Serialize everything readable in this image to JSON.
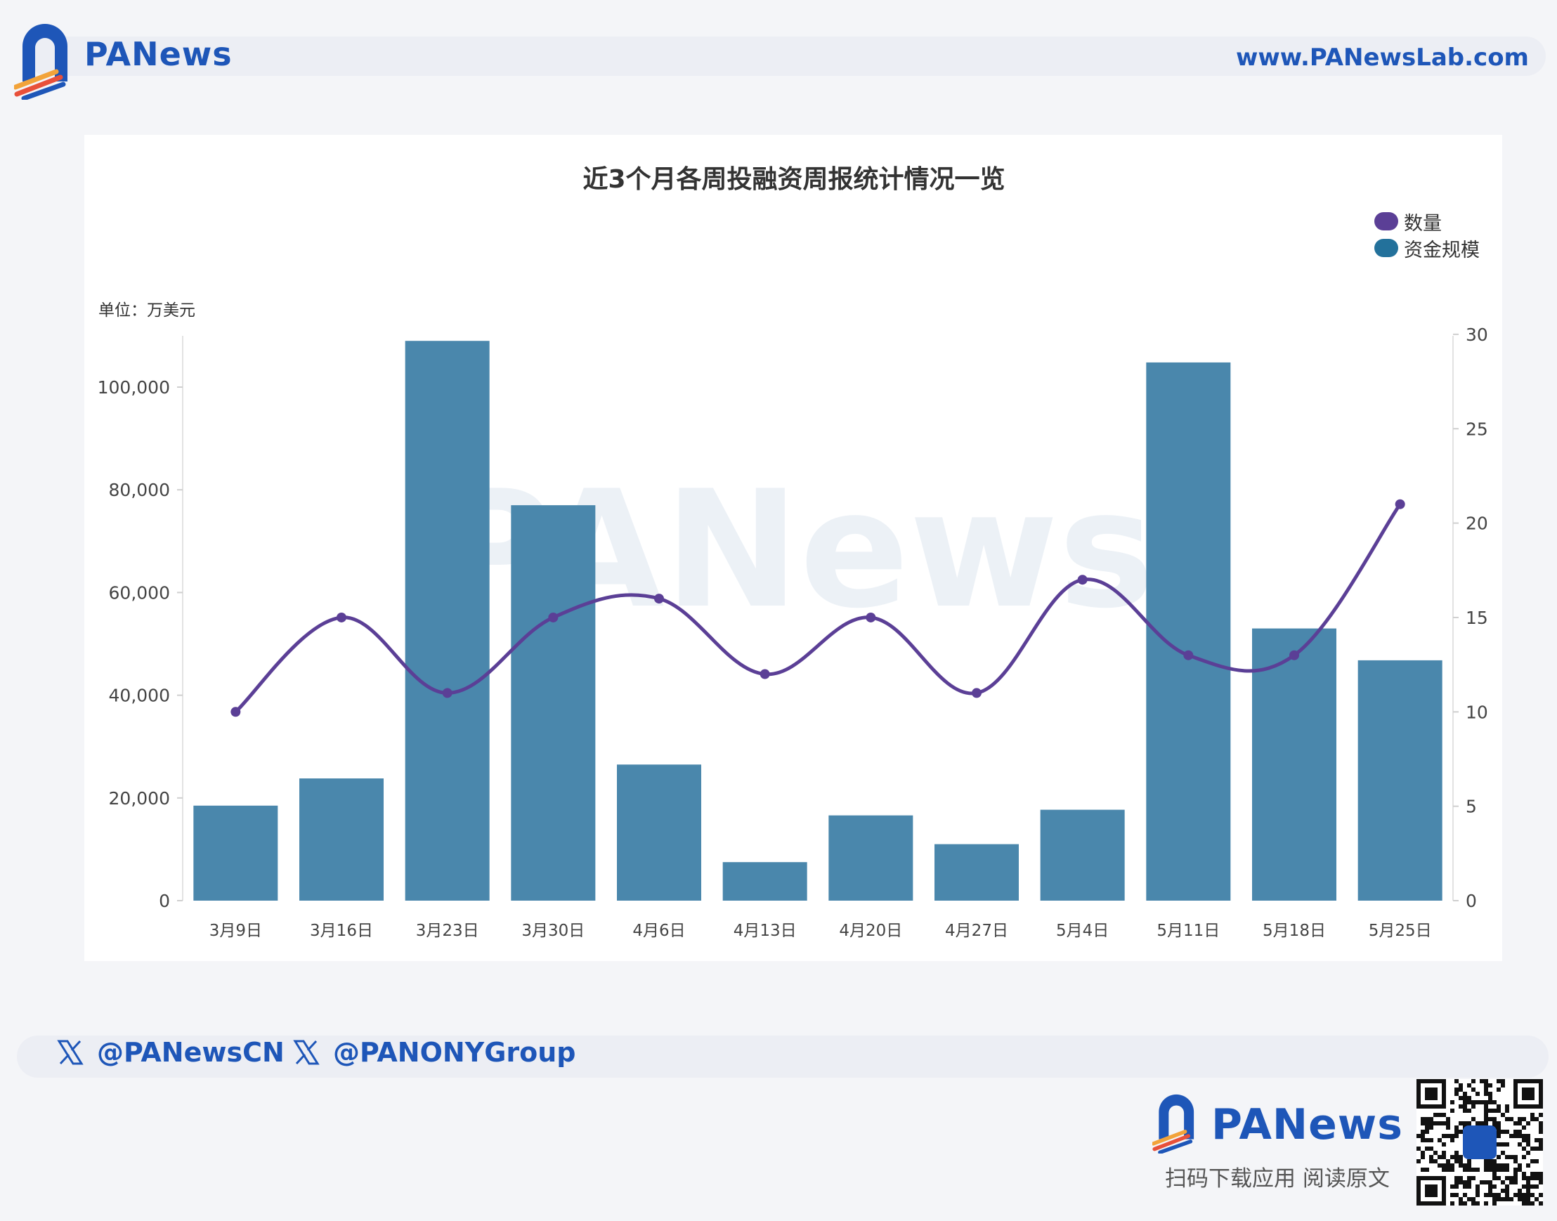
{
  "header": {
    "brand": "PANews",
    "url": "www.PANewsLab.com"
  },
  "chart_data": {
    "type": "bar",
    "title": "近3个月各周投融资周报统计情况一览",
    "unit_label": "单位：万美元",
    "categories": [
      "3月9日",
      "3月16日",
      "3月23日",
      "3月30日",
      "4月6日",
      "4月13日",
      "4月20日",
      "4月27日",
      "5月4日",
      "5月11日",
      "5月18日",
      "5月25日"
    ],
    "series": [
      {
        "name": "资金规模",
        "type": "bar",
        "axis": "left",
        "color": "#4a87ac",
        "values": [
          18500,
          23800,
          109000,
          77000,
          26500,
          7500,
          16600,
          11000,
          17700,
          104800,
          53000,
          46800
        ]
      },
      {
        "name": "数量",
        "type": "line",
        "axis": "right",
        "color": "#5b3f96",
        "values": [
          10,
          15,
          11,
          15,
          16,
          12,
          15,
          11,
          17,
          13,
          13,
          21
        ]
      }
    ],
    "y_left": {
      "min": 0,
      "max": 110000,
      "ticks": [
        0,
        20000,
        40000,
        60000,
        80000,
        100000
      ],
      "tick_labels": [
        "0",
        "20,000",
        "40,000",
        "60,000",
        "80,000",
        "100,000"
      ]
    },
    "y_right": {
      "min": 0,
      "max": 30,
      "ticks": [
        0,
        5,
        10,
        15,
        20,
        25,
        30
      ],
      "tick_labels": [
        "0",
        "5",
        "10",
        "15",
        "20",
        "25",
        "30"
      ]
    },
    "legend_position": "top-right"
  },
  "footer": {
    "social": [
      "@PANewsCN",
      "@PANONYGroup"
    ],
    "brand": "PANews",
    "tagline": "扫码下载应用  阅读原文"
  }
}
